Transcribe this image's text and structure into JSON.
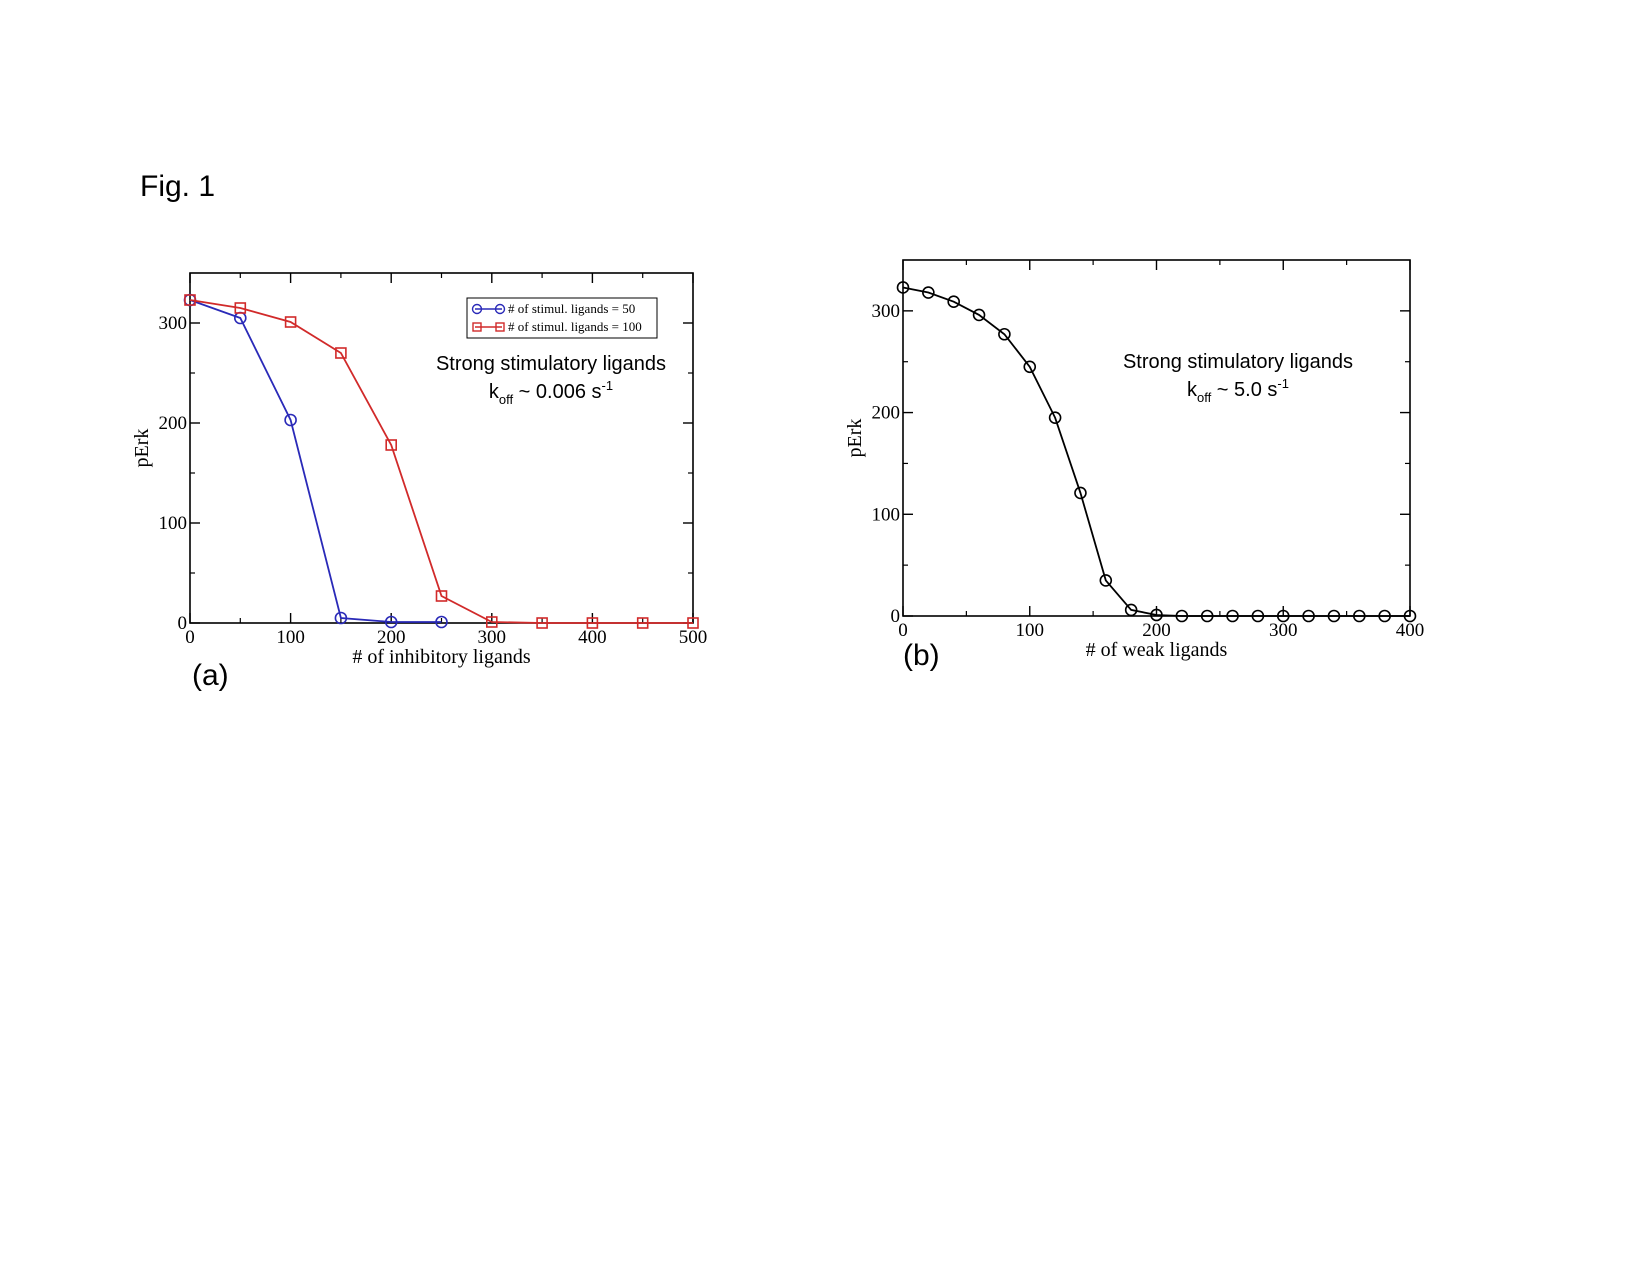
{
  "figure_title": "Fig. 1",
  "chart_data": [
    {
      "type": "line",
      "panel_label": "(a)",
      "xlabel": "# of inhibitory ligands",
      "ylabel": "pErk",
      "xlim": [
        0,
        500
      ],
      "ylim": [
        0,
        350
      ],
      "xticks": [
        0,
        100,
        200,
        300,
        400,
        500
      ],
      "yticks": [
        0,
        100,
        200,
        300
      ],
      "grid": false,
      "legend_position": "top-right",
      "annotation": {
        "line1": "Strong stimulatory ligands",
        "k": "k",
        "k_sub": "off",
        "value": " ~ 0.006 s",
        "value_sup": "-1"
      },
      "series": [
        {
          "name": "# of stimul. ligands = 50",
          "color": "#2a2ab8",
          "marker": "circle",
          "x": [
            0,
            50,
            100,
            150,
            200,
            250
          ],
          "y": [
            323,
            305,
            203,
            5,
            1,
            1
          ]
        },
        {
          "name": "# of stimul. ligands = 100",
          "color": "#d12a2a",
          "marker": "square",
          "x": [
            0,
            50,
            100,
            150,
            200,
            250,
            300,
            350,
            400,
            450,
            500
          ],
          "y": [
            323,
            315,
            301,
            270,
            178,
            27,
            1,
            0,
            0,
            0,
            0
          ]
        }
      ]
    },
    {
      "type": "line",
      "panel_label": "(b)",
      "xlabel": "# of weak ligands",
      "ylabel": "pErk",
      "xlim": [
        0,
        400
      ],
      "ylim": [
        0,
        350
      ],
      "xticks": [
        0,
        100,
        200,
        300,
        400
      ],
      "yticks": [
        0,
        100,
        200,
        300
      ],
      "grid": false,
      "annotation": {
        "line1": "Strong stimulatory ligands",
        "k": "k",
        "k_sub": "off",
        "value": " ~ 5.0 s",
        "value_sup": "-1"
      },
      "series": [
        {
          "color": "#000000",
          "marker": "circle",
          "x": [
            0,
            20,
            40,
            60,
            80,
            100,
            120,
            140,
            160,
            180,
            200,
            220,
            240,
            260,
            280,
            300,
            320,
            340,
            360,
            380,
            400
          ],
          "y": [
            323,
            318,
            309,
            296,
            277,
            245,
            195,
            121,
            35,
            6,
            1,
            0,
            0,
            0,
            0,
            0,
            0,
            0,
            0,
            0,
            0
          ]
        }
      ]
    }
  ]
}
